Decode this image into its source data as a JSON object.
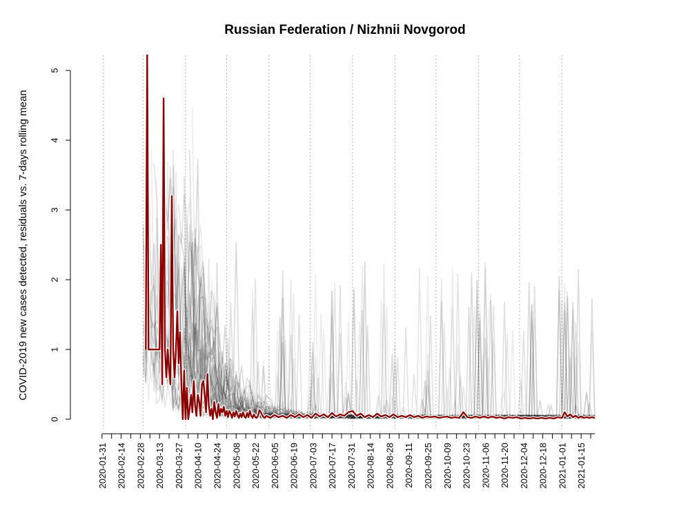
{
  "chart_data": {
    "type": "line",
    "title": "Russian Federation / Nizhnii Novgorod",
    "xlabel": "",
    "ylabel": "COVID-2019 new cases detected, residuals vs. 7-days rolling mean",
    "x_range": [
      "2020-01-22",
      "2021-01-25"
    ],
    "ylim": [
      0,
      5
    ],
    "y_ticks": [
      0,
      1,
      2,
      3,
      4,
      5
    ],
    "x_ticks": [
      "2020-01-31",
      "2020-02-14",
      "2020-02-28",
      "2020-03-13",
      "2020-03-27",
      "2020-04-10",
      "2020-04-24",
      "2020-05-08",
      "2020-05-22",
      "2020-06-05",
      "2020-06-19",
      "2020-07-03",
      "2020-07-17",
      "2020-07-31",
      "2020-08-14",
      "2020-08-28",
      "2020-09-11",
      "2020-09-25",
      "2020-10-09",
      "2020-10-23",
      "2020-11-06",
      "2020-11-20",
      "2020-12-04",
      "2020-12-18",
      "2021-01-01",
      "2021-01-15"
    ],
    "gridlines": "vertical dotted (monthly)",
    "highlight_color": "#8b0000",
    "background_series_color": "#000000",
    "series": [
      {
        "values": [
          [
            "2020-03-03",
            1.0
          ],
          [
            "2020-03-04",
            6.0
          ],
          [
            "2020-03-05",
            1.0
          ],
          [
            "2020-03-06",
            1.0
          ],
          [
            "2020-03-07",
            1.0
          ],
          [
            "2020-03-08",
            1.0
          ],
          [
            "2020-03-09",
            1.0
          ],
          [
            "2020-03-10",
            1.0
          ],
          [
            "2020-03-11",
            1.0
          ],
          [
            "2020-03-12",
            1.0
          ],
          [
            "2020-03-13",
            1.0
          ],
          [
            "2020-03-14",
            2.5
          ],
          [
            "2020-03-15",
            0.5
          ],
          [
            "2020-03-16",
            4.6
          ],
          [
            "2020-03-17",
            1.0
          ],
          [
            "2020-03-18",
            0.6
          ],
          [
            "2020-03-19",
            1.0
          ],
          [
            "2020-03-20",
            0.7
          ],
          [
            "2020-03-21",
            0.5
          ],
          [
            "2020-03-22",
            3.2
          ],
          [
            "2020-03-23",
            1.0
          ],
          [
            "2020-03-24",
            0.6
          ],
          [
            "2020-03-25",
            1.0
          ],
          [
            "2020-03-26",
            1.55
          ],
          [
            "2020-03-27",
            0.8
          ],
          [
            "2020-03-28",
            1.25
          ],
          [
            "2020-03-29",
            0.5
          ],
          [
            "2020-03-30",
            0.0
          ],
          [
            "2020-03-31",
            0.7
          ],
          [
            "2020-04-01",
            0.0
          ],
          [
            "2020-04-02",
            0.45
          ],
          [
            "2020-04-03",
            0.0
          ],
          [
            "2020-04-04",
            0.15
          ],
          [
            "2020-04-05",
            0.35
          ],
          [
            "2020-04-06",
            0.1
          ],
          [
            "2020-04-07",
            0.55
          ],
          [
            "2020-04-08",
            0.2
          ],
          [
            "2020-04-09",
            0.05
          ],
          [
            "2020-04-10",
            0.35
          ],
          [
            "2020-04-11",
            0.25
          ],
          [
            "2020-04-12",
            0.05
          ],
          [
            "2020-04-13",
            0.5
          ],
          [
            "2020-04-14",
            0.55
          ],
          [
            "2020-04-15",
            0.35
          ],
          [
            "2020-04-16",
            0.1
          ],
          [
            "2020-04-17",
            0.65
          ],
          [
            "2020-04-18",
            0.2
          ],
          [
            "2020-04-19",
            0.05
          ],
          [
            "2020-04-20",
            0.15
          ],
          [
            "2020-04-21",
            0.0
          ],
          [
            "2020-04-22",
            0.25
          ],
          [
            "2020-04-23",
            0.1
          ],
          [
            "2020-04-24",
            0.02
          ],
          [
            "2020-04-25",
            0.22
          ],
          [
            "2020-04-26",
            0.05
          ],
          [
            "2020-04-27",
            0.15
          ],
          [
            "2020-04-28",
            0.1
          ],
          [
            "2020-04-29",
            0.18
          ],
          [
            "2020-04-30",
            0.05
          ],
          [
            "2020-05-01",
            0.12
          ],
          [
            "2020-05-02",
            0.03
          ],
          [
            "2020-05-03",
            0.12
          ],
          [
            "2020-05-04",
            0.08
          ],
          [
            "2020-05-05",
            0.02
          ],
          [
            "2020-05-06",
            0.1
          ],
          [
            "2020-05-07",
            0.04
          ],
          [
            "2020-05-08",
            0.12
          ],
          [
            "2020-05-09",
            0.06
          ],
          [
            "2020-05-10",
            0.02
          ],
          [
            "2020-05-11",
            0.08
          ],
          [
            "2020-05-12",
            0.03
          ],
          [
            "2020-05-13",
            0.1
          ],
          [
            "2020-05-14",
            0.04
          ],
          [
            "2020-05-15",
            0.02
          ],
          [
            "2020-05-16",
            0.09
          ],
          [
            "2020-05-17",
            0.03
          ],
          [
            "2020-05-18",
            0.12
          ],
          [
            "2020-05-19",
            0.05
          ],
          [
            "2020-05-20",
            0.02
          ],
          [
            "2020-05-21",
            0.07
          ],
          [
            "2020-05-22",
            0.03
          ],
          [
            "2020-05-23",
            0.02
          ],
          [
            "2020-05-24",
            0.05
          ],
          [
            "2020-05-25",
            0.13
          ],
          [
            "2020-05-26",
            0.1
          ],
          [
            "2020-05-27",
            0.06
          ],
          [
            "2020-05-28",
            0.03
          ],
          [
            "2020-05-29",
            0.02
          ],
          [
            "2020-05-30",
            0.05
          ],
          [
            "2020-05-31",
            0.04
          ],
          [
            "2020-06-01",
            0.03
          ],
          [
            "2020-06-02",
            0.02
          ],
          [
            "2020-06-05",
            0.06
          ],
          [
            "2020-06-08",
            0.03
          ],
          [
            "2020-06-11",
            0.05
          ],
          [
            "2020-06-14",
            0.02
          ],
          [
            "2020-06-17",
            0.06
          ],
          [
            "2020-06-20",
            0.03
          ],
          [
            "2020-06-23",
            0.07
          ],
          [
            "2020-06-26",
            0.03
          ],
          [
            "2020-06-29",
            0.06
          ],
          [
            "2020-07-02",
            0.02
          ],
          [
            "2020-07-05",
            0.08
          ],
          [
            "2020-07-08",
            0.04
          ],
          [
            "2020-07-11",
            0.07
          ],
          [
            "2020-07-14",
            0.03
          ],
          [
            "2020-07-17",
            0.09
          ],
          [
            "2020-07-20",
            0.04
          ],
          [
            "2020-07-23",
            0.07
          ],
          [
            "2020-07-26",
            0.05
          ],
          [
            "2020-07-29",
            0.1
          ],
          [
            "2020-08-01",
            0.12
          ],
          [
            "2020-08-04",
            0.05
          ],
          [
            "2020-08-07",
            0.08
          ],
          [
            "2020-08-10",
            0.03
          ],
          [
            "2020-08-13",
            0.06
          ],
          [
            "2020-08-16",
            0.03
          ],
          [
            "2020-08-19",
            0.08
          ],
          [
            "2020-08-22",
            0.04
          ],
          [
            "2020-08-25",
            0.06
          ],
          [
            "2020-08-28",
            0.03
          ],
          [
            "2020-08-31",
            0.07
          ],
          [
            "2020-09-03",
            0.03
          ],
          [
            "2020-09-06",
            0.05
          ],
          [
            "2020-09-09",
            0.03
          ],
          [
            "2020-09-12",
            0.06
          ],
          [
            "2020-09-15",
            0.03
          ],
          [
            "2020-09-18",
            0.05
          ],
          [
            "2020-09-21",
            0.02
          ],
          [
            "2020-09-24",
            0.04
          ],
          [
            "2020-09-27",
            0.03
          ],
          [
            "2020-09-30",
            0.04
          ],
          [
            "2020-10-03",
            0.02
          ],
          [
            "2020-10-06",
            0.03
          ],
          [
            "2020-10-09",
            0.04
          ],
          [
            "2020-10-12",
            0.02
          ],
          [
            "2020-10-15",
            0.03
          ],
          [
            "2020-10-18",
            0.02
          ],
          [
            "2020-10-21",
            0.1
          ],
          [
            "2020-10-24",
            0.03
          ],
          [
            "2020-10-27",
            0.02
          ],
          [
            "2020-10-30",
            0.04
          ],
          [
            "2020-11-02",
            0.02
          ],
          [
            "2020-11-05",
            0.04
          ],
          [
            "2020-11-08",
            0.02
          ],
          [
            "2020-11-11",
            0.04
          ],
          [
            "2020-11-14",
            0.02
          ],
          [
            "2020-11-17",
            0.03
          ],
          [
            "2020-11-20",
            0.01
          ],
          [
            "2020-11-23",
            0.03
          ],
          [
            "2020-11-26",
            0.02
          ],
          [
            "2020-11-29",
            0.03
          ],
          [
            "2020-12-02",
            0.01
          ],
          [
            "2020-12-05",
            0.02
          ],
          [
            "2020-12-08",
            0.01
          ],
          [
            "2020-12-11",
            0.02
          ],
          [
            "2020-12-14",
            0.01
          ],
          [
            "2020-12-17",
            0.02
          ],
          [
            "2020-12-20",
            0.01
          ],
          [
            "2020-12-23",
            0.02
          ],
          [
            "2020-12-26",
            0.01
          ],
          [
            "2020-12-29",
            0.03
          ],
          [
            "2021-01-01",
            0.02
          ],
          [
            "2021-01-03",
            0.1
          ],
          [
            "2021-01-05",
            0.04
          ],
          [
            "2021-01-07",
            0.07
          ],
          [
            "2021-01-09",
            0.03
          ],
          [
            "2021-01-11",
            0.05
          ],
          [
            "2021-01-13",
            0.02
          ],
          [
            "2021-01-15",
            0.04
          ],
          [
            "2021-01-17",
            0.02
          ],
          [
            "2021-01-19",
            0.03
          ],
          [
            "2021-01-21",
            0.02
          ],
          [
            "2021-01-23",
            0.03
          ],
          [
            "2021-01-25",
            0.02
          ]
        ]
      }
    ]
  }
}
